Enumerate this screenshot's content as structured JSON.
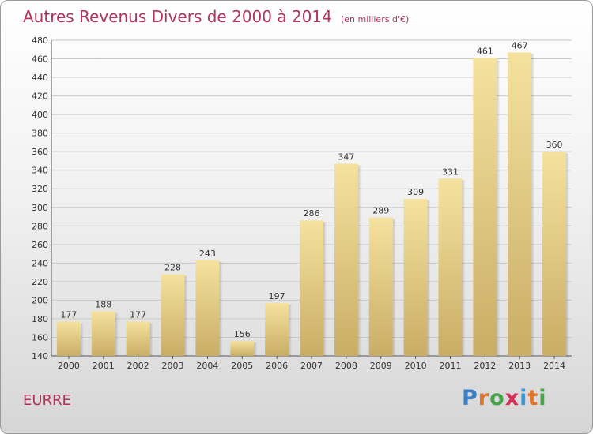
{
  "header": {
    "title": "Autres Revenus Divers de 2000 à 2014",
    "subtitle": "(en milliers d'€)"
  },
  "footer": {
    "town": "EURRE",
    "brand_letters": [
      "P",
      "r",
      "o",
      "x",
      "i",
      "t",
      "i"
    ]
  },
  "colors": {
    "title": "#b2345a",
    "bar_light": "#f5e29e",
    "bar_dark": "#c9ad66",
    "brand": [
      "#3a7fc6",
      "#e0742a",
      "#47a44a",
      "#d62f56",
      "#3a9ad9",
      "#e0742a",
      "#47a44a"
    ]
  },
  "chart_data": {
    "type": "bar",
    "title": "Autres Revenus Divers de 2000 à 2014",
    "subtitle": "(en milliers d'€)",
    "xlabel": "",
    "ylabel": "",
    "categories": [
      "2000",
      "2001",
      "2002",
      "2003",
      "2004",
      "2005",
      "2006",
      "2007",
      "2008",
      "2009",
      "2010",
      "2011",
      "2012",
      "2013",
      "2014"
    ],
    "values": [
      177,
      188,
      177,
      228,
      243,
      156,
      197,
      286,
      347,
      289,
      309,
      331,
      461,
      467,
      360
    ],
    "ylim": [
      140,
      480
    ],
    "yticks": [
      140,
      160,
      180,
      200,
      220,
      240,
      260,
      280,
      300,
      320,
      340,
      360,
      380,
      400,
      420,
      440,
      460,
      480
    ],
    "grid": true,
    "data_labels": true
  }
}
